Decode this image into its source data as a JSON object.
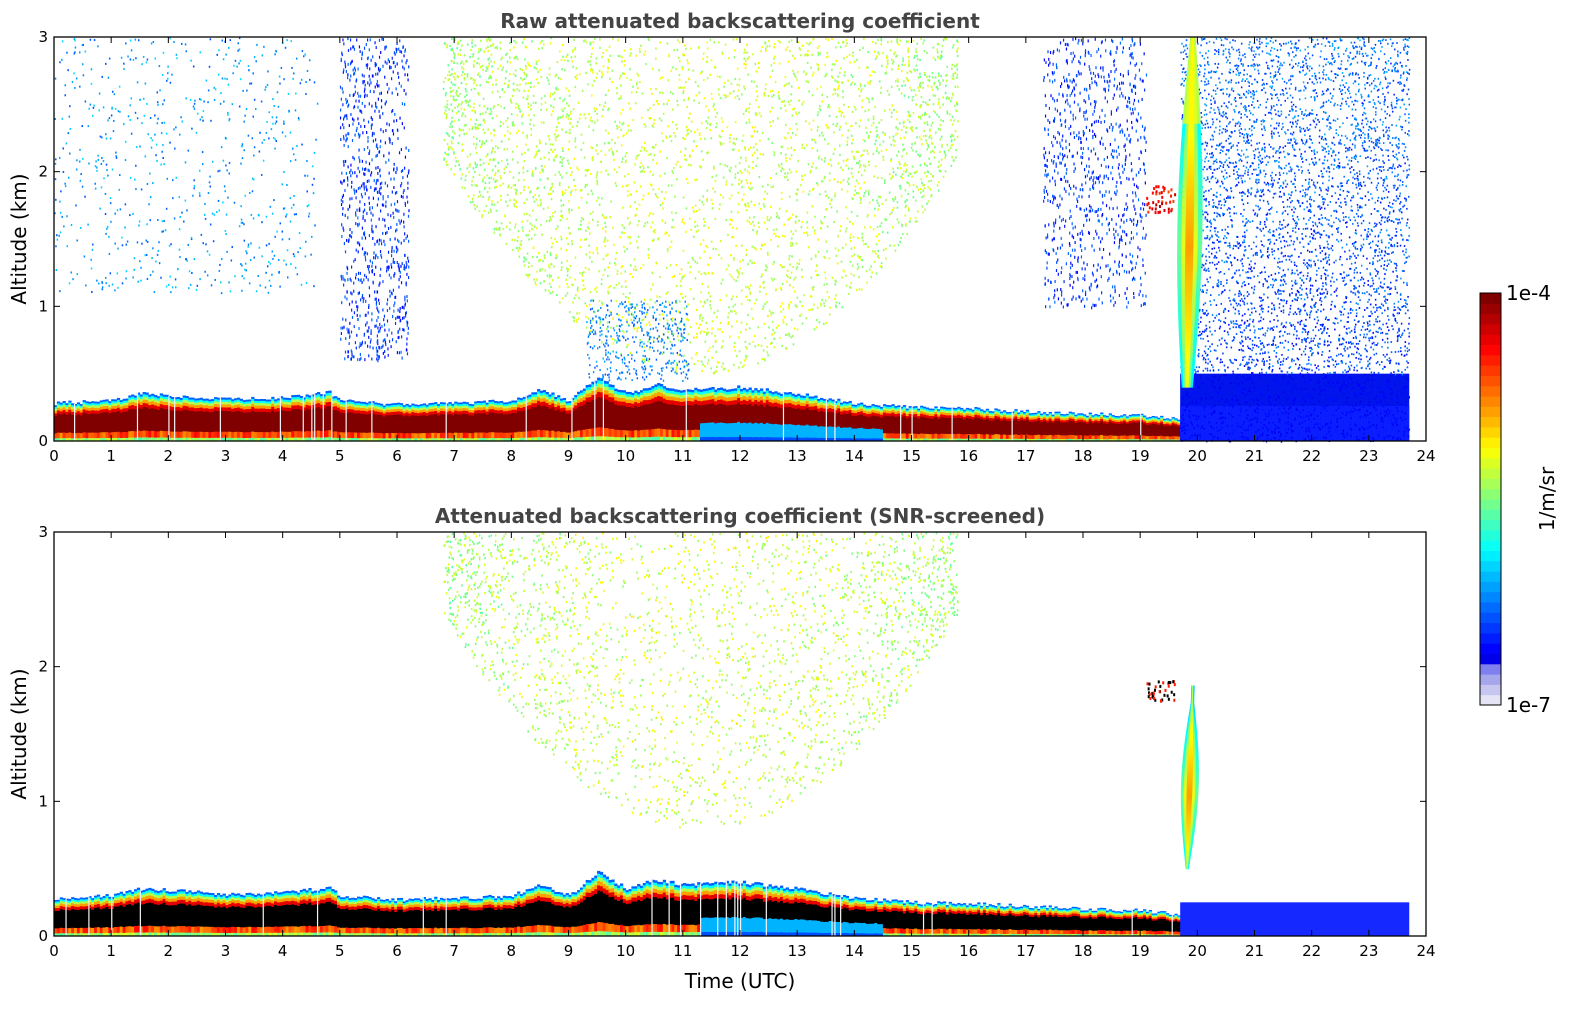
{
  "chart_data": [
    {
      "type": "heatmap",
      "title": "Raw attenuated backscattering coefficient",
      "xlabel": "",
      "ylabel": "Altitude (km)",
      "xlim": [
        0,
        24
      ],
      "ylim": [
        0,
        3
      ],
      "xticks": [
        "0",
        "1",
        "2",
        "3",
        "4",
        "5",
        "6",
        "7",
        "8",
        "9",
        "10",
        "11",
        "12",
        "13",
        "14",
        "15",
        "16",
        "17",
        "18",
        "19",
        "20",
        "21",
        "22",
        "23",
        "24"
      ],
      "yticks": [
        "0",
        "1",
        "2",
        "3"
      ],
      "data_end_hour": 23.7,
      "boundary_layer_top_km": [
        [
          0,
          0.28
        ],
        [
          1,
          0.3
        ],
        [
          1.5,
          0.35
        ],
        [
          2,
          0.34
        ],
        [
          3,
          0.31
        ],
        [
          4,
          0.32
        ],
        [
          4.8,
          0.36
        ],
        [
          5,
          0.3
        ],
        [
          6,
          0.27
        ],
        [
          7,
          0.28
        ],
        [
          8,
          0.3
        ],
        [
          8.5,
          0.38
        ],
        [
          9,
          0.3
        ],
        [
          9.5,
          0.48
        ],
        [
          10,
          0.35
        ],
        [
          10.5,
          0.42
        ],
        [
          11,
          0.38
        ],
        [
          12,
          0.4
        ],
        [
          13,
          0.35
        ],
        [
          14,
          0.28
        ],
        [
          15,
          0.25
        ],
        [
          16,
          0.24
        ],
        [
          17,
          0.22
        ],
        [
          18,
          0.2
        ],
        [
          19,
          0.19
        ],
        [
          19.7,
          0.16
        ]
      ],
      "features": [
        {
          "name": "residual aerosol layer",
          "time_range": [
            6.8,
            15.8
          ],
          "altitude_range_km": [
            0.5,
            3.0
          ]
        },
        {
          "name": "thin cloud",
          "time_range": [
            19.1,
            19.6
          ],
          "altitude_range_km": [
            1.7,
            1.9
          ]
        },
        {
          "name": "precipitating cloud",
          "time_range": [
            19.6,
            20.5
          ],
          "altitude_range_km": [
            0.4,
            3.0
          ]
        },
        {
          "name": "noisy background",
          "time_range": [
            19.7,
            23.7
          ],
          "altitude_range_km": [
            0.0,
            3.0
          ]
        }
      ]
    },
    {
      "type": "heatmap",
      "title": "Attenuated backscattering coefficient (SNR-screened)",
      "xlabel": "Time (UTC)",
      "ylabel": "Altitude (km)",
      "xlim": [
        0,
        24
      ],
      "ylim": [
        0,
        3
      ],
      "xticks": [
        "0",
        "1",
        "2",
        "3",
        "4",
        "5",
        "6",
        "7",
        "8",
        "9",
        "10",
        "11",
        "12",
        "13",
        "14",
        "15",
        "16",
        "17",
        "18",
        "19",
        "20",
        "21",
        "22",
        "23",
        "24"
      ],
      "yticks": [
        "0",
        "1",
        "2",
        "3"
      ],
      "data_end_hour": 23.7,
      "screened_low_layer_top_km": 0.25,
      "features": [
        {
          "name": "residual aerosol layer",
          "time_range": [
            6.8,
            15.8
          ],
          "altitude_range_km": [
            0.8,
            3.0
          ]
        },
        {
          "name": "thin cloud",
          "time_range": [
            19.1,
            19.6
          ],
          "altitude_range_km": [
            1.75,
            1.9
          ]
        },
        {
          "name": "precipitating cloud",
          "time_range": [
            19.6,
            20.2
          ],
          "altitude_range_km": [
            0.5,
            1.85
          ]
        }
      ]
    }
  ],
  "colorbar": {
    "max_label": "1e-4",
    "min_label": "1e-7",
    "unit_label": "1/m/sr",
    "colormap": "jet"
  }
}
